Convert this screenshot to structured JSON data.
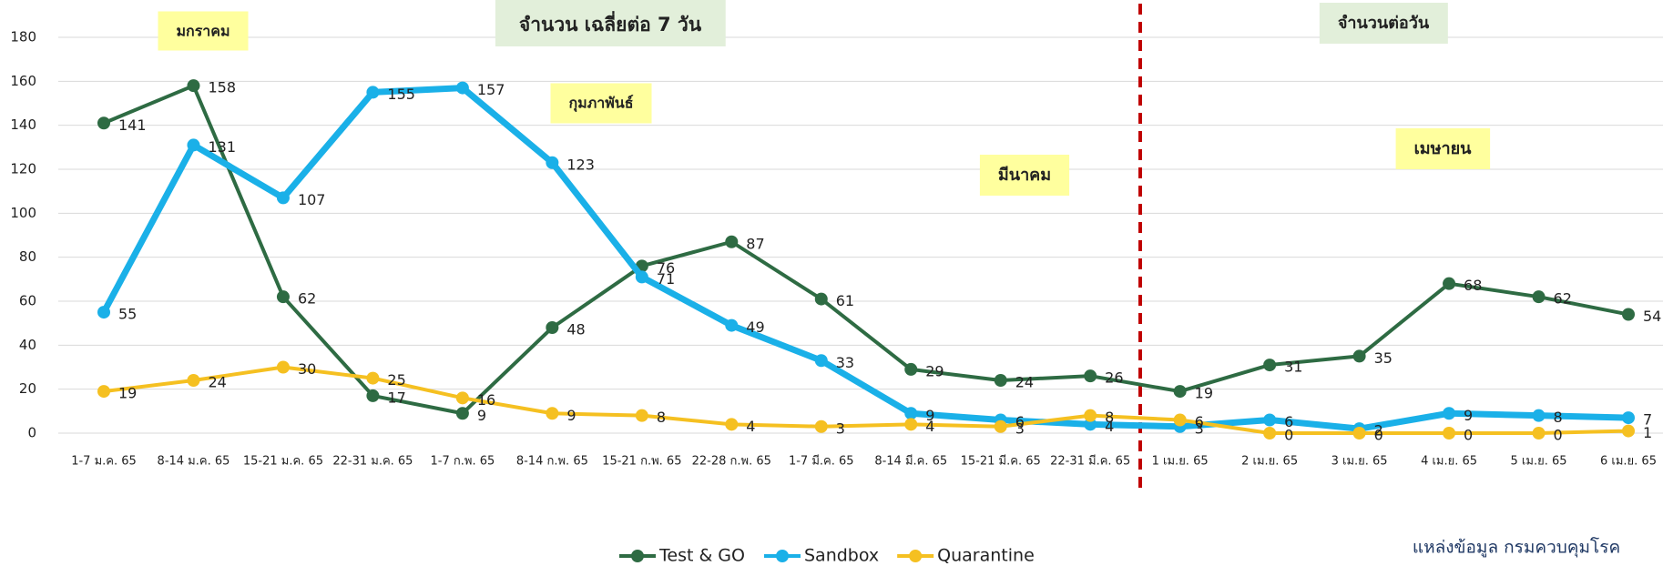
{
  "chart_data": {
    "type": "line",
    "categories": [
      "1-7 ม.ค. 65",
      "8-14 ม.ค. 65",
      "15-21 ม.ค. 65",
      "22-31 ม.ค. 65",
      "1-7 ก.พ. 65",
      "8-14 ก.พ. 65",
      "15-21 ก.พ. 65",
      "22-28 ก.พ. 65",
      "1-7 มี.ค. 65",
      "8-14 มี.ค. 65",
      "15-21 มี.ค. 65",
      "22-31 มี.ค. 65",
      "1 เม.ย. 65",
      "2 เม.ย. 65",
      "3 เม.ย. 65",
      "4 เม.ย. 65",
      "5 เม.ย. 65",
      "6 เม.ย. 65"
    ],
    "series": [
      {
        "name": "Test & GO",
        "color": "#2e6b43",
        "values": [
          141,
          158,
          62,
          17,
          9,
          48,
          76,
          87,
          61,
          29,
          24,
          26,
          19,
          31,
          35,
          68,
          62,
          54
        ]
      },
      {
        "name": "Sandbox",
        "color": "#1ab0e8",
        "values": [
          55,
          131,
          107,
          155,
          157,
          123,
          71,
          49,
          33,
          9,
          6,
          4,
          3,
          6,
          2,
          9,
          8,
          7
        ]
      },
      {
        "name": "Quarantine",
        "color": "#f5c021",
        "values": [
          19,
          24,
          30,
          25,
          16,
          9,
          8,
          4,
          3,
          4,
          3,
          8,
          6,
          0,
          0,
          0,
          0,
          1
        ]
      }
    ],
    "ylim": [
      0,
      180
    ],
    "yticks": [
      0,
      20,
      40,
      60,
      80,
      100,
      120,
      140,
      160,
      180
    ],
    "grid": true,
    "legend": "bottom",
    "annotations": [
      "มกราคม",
      "จำนวน เฉลี่ยต่อ 7 วัน",
      "กุมภาพันธ์",
      "มีนาคม",
      "จำนวนต่อวัน",
      "เมษายน"
    ],
    "source": "แหล่งข้อมูล กรมควบคุมโรค"
  }
}
